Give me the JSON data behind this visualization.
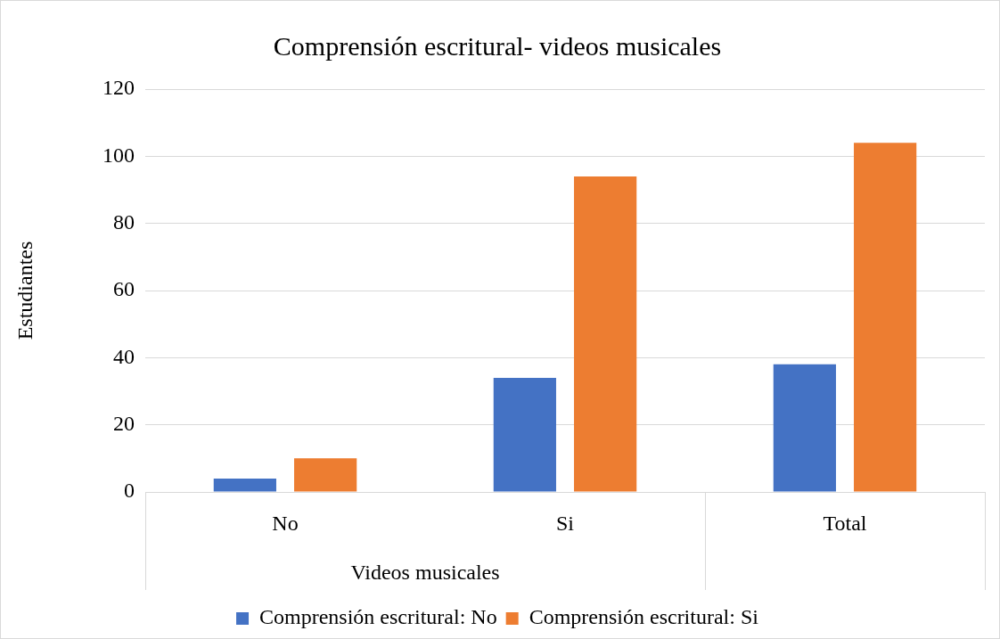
{
  "chart_data": {
    "type": "bar",
    "title": "Comprensión escritural- videos musicales",
    "ylabel": "Estudiantes",
    "categories": [
      "No",
      "Si",
      "Total"
    ],
    "series": [
      {
        "name": "Comprensión escritural: No",
        "color": "#4472c4",
        "values": [
          4,
          34,
          38
        ]
      },
      {
        "name": "Comprensión escritural: Si",
        "color": "#ed7d31",
        "values": [
          10,
          94,
          104
        ]
      }
    ],
    "ylim": [
      0,
      120
    ],
    "yticks": [
      0,
      20,
      40,
      60,
      80,
      100,
      120
    ],
    "grid": "y",
    "legend": "bottom",
    "annotations": [
      "Videos musicales"
    ]
  }
}
